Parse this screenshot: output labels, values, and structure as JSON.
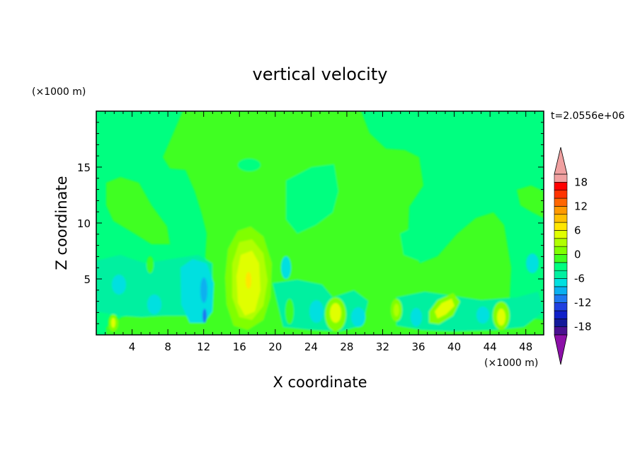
{
  "chart_data": {
    "type": "heatmap",
    "title": "vertical velocity",
    "xlabel": "X coordinate",
    "ylabel": "Z coordinate",
    "x_unit": "(×1000 m)",
    "y_unit": "(×1000 m)",
    "time_label": "t=2.0556e+06",
    "xlim": [
      0,
      50
    ],
    "ylim": [
      0,
      20
    ],
    "x_ticks": [
      4,
      8,
      12,
      16,
      20,
      24,
      28,
      32,
      36,
      40,
      44,
      48
    ],
    "y_ticks": [
      5,
      10,
      15
    ],
    "colorbar": {
      "range": [
        -20,
        20
      ],
      "step": 2,
      "ticks": [
        18,
        12,
        6,
        0,
        -6,
        -12,
        -18
      ],
      "colors": [
        "#8c10a8",
        "#4a1090",
        "#141a9a",
        "#1020c8",
        "#2040e0",
        "#1e78f0",
        "#0ab0f0",
        "#00e0e0",
        "#00f0a0",
        "#00ff80",
        "#40ff20",
        "#80ff00",
        "#b0ff00",
        "#e0ff00",
        "#ffe600",
        "#ffc000",
        "#ff9900",
        "#ff6600",
        "#ff3300",
        "#ff0000",
        "#f0a0a0"
      ]
    },
    "features": [
      {
        "kind": "updraft_core",
        "x": 17,
        "z": 5.5,
        "max": 9
      },
      {
        "kind": "updraft",
        "x": 27,
        "z": 2,
        "max": 5
      },
      {
        "kind": "updraft",
        "x": 38.5,
        "z": 2.5,
        "max": 5
      },
      {
        "kind": "updraft",
        "x": 45.5,
        "z": 2,
        "max": 5
      },
      {
        "kind": "updraft",
        "x": 2,
        "z": 1,
        "max": 5
      },
      {
        "kind": "updraft",
        "x": 33.8,
        "z": 2.2,
        "max": 4
      },
      {
        "kind": "downdraft",
        "x": 12,
        "z": 2,
        "min": -12
      }
    ]
  }
}
